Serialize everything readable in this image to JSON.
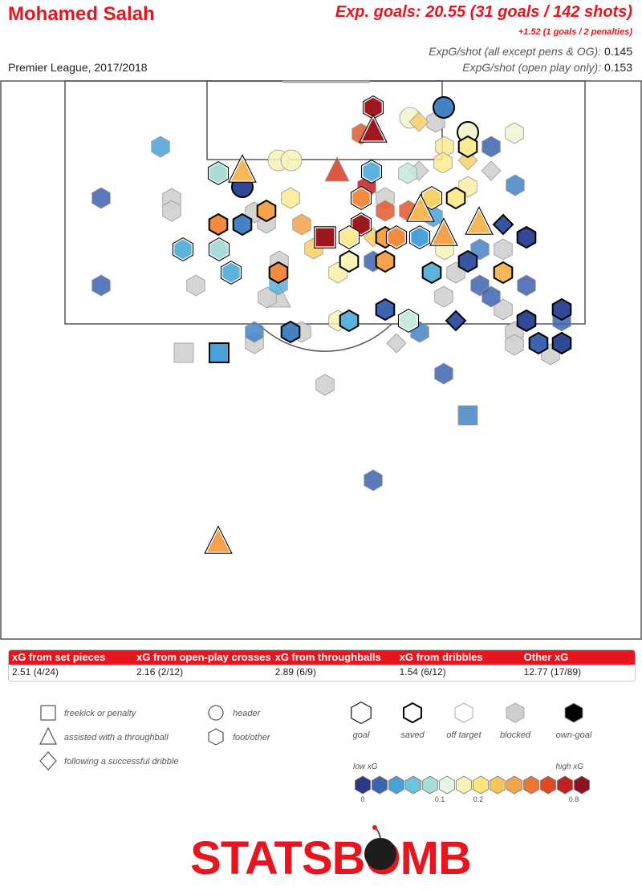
{
  "header": {
    "player_name": "Mohamed Salah",
    "competition": "Premier League, 2017/2018",
    "xg_total": "Exp. goals: 20.55 (31 goals / 142 shots)",
    "xg_penalties": "+1.52 (1 goals / 2 penalties)",
    "xg_per_shot_all_label": "ExpG/shot (all except pens & OG):",
    "xg_per_shot_all_value": "0.145",
    "xg_per_shot_open_label": "ExpG/shot (open play only):",
    "xg_per_shot_open_value": "0.153"
  },
  "breakdown": {
    "headers": [
      "xG from set pieces",
      "xG from open-play crosses",
      "xG from throughballs",
      "xG from dribbles",
      "Other xG"
    ],
    "values": [
      "2.51 (4/24)",
      "2.16 (2/12)",
      "2.89 (6/9)",
      "1.54 (6/12)",
      "12.77 (17/89)"
    ]
  },
  "legend": {
    "shapes": [
      {
        "shape": "square",
        "label": "freekick or penalty"
      },
      {
        "shape": "triangle",
        "label": "assisted with a throughball"
      },
      {
        "shape": "diamond",
        "label": "following a successful dribble"
      },
      {
        "shape": "circle",
        "label": "header"
      },
      {
        "shape": "hexagon",
        "label": "foot/other"
      }
    ],
    "outcomes": [
      {
        "outcome": "goal",
        "label": "goal"
      },
      {
        "outcome": "saved",
        "label": "saved"
      },
      {
        "outcome": "off",
        "label": "off target"
      },
      {
        "outcome": "blocked",
        "label": "blocked"
      },
      {
        "outcome": "own",
        "label": "own-goal"
      }
    ],
    "scale_low_label": "low xG",
    "scale_high_label": "high xG",
    "scale_colors": [
      "#2b3a87",
      "#3e63b0",
      "#4aa0d8",
      "#6fc3dc",
      "#a8dcd9",
      "#e6f4e4",
      "#f8f3b8",
      "#fbe67d",
      "#f7c55e",
      "#f4a24b",
      "#ec7434",
      "#df4a24",
      "#c0211e",
      "#8e1220"
    ],
    "scale_ticks": [
      "0",
      "0.1",
      "0.2",
      "0.8"
    ]
  },
  "logo_text": "STATSBOMB",
  "colors": {
    "brand_red": "#e8141e",
    "blocked_grey": "#d0d0d0"
  },
  "chart_data": {
    "type": "scatter",
    "description_of_encoding": "shot locations on the attacking half of the pitch; shape = shot type, color = xG, outline = outcome",
    "series": [
      {
        "shape": "hexagon",
        "outcome": "goal",
        "xg": 0.8,
        "x": 465,
        "y": 134
      },
      {
        "shape": "triangle",
        "outcome": "goal",
        "xg": 0.8,
        "x": 465,
        "y": 163
      },
      {
        "shape": "hexagon",
        "outcome": "off",
        "xg": 0.5,
        "x": 450,
        "y": 167
      },
      {
        "shape": "circle",
        "outcome": "saved",
        "xg": 0.04,
        "x": 553,
        "y": 134
      },
      {
        "shape": "circle",
        "outcome": "off",
        "xg": 0.12,
        "x": 511,
        "y": 147
      },
      {
        "shape": "diamond",
        "outcome": "off",
        "xg": 0.2,
        "x": 522,
        "y": 152
      },
      {
        "shape": "hexagon",
        "outcome": "blocked",
        "xg": 0.1,
        "x": 543,
        "y": 152
      },
      {
        "shape": "circle",
        "outcome": "saved",
        "xg": 0.12,
        "x": 583,
        "y": 165
      },
      {
        "shape": "hexagon",
        "outcome": "off",
        "xg": 0.12,
        "x": 641,
        "y": 166
      },
      {
        "shape": "hexagon",
        "outcome": "off",
        "xg": 0.05,
        "x": 200,
        "y": 183
      },
      {
        "shape": "hexagon",
        "outcome": "off",
        "xg": 0.15,
        "x": 554,
        "y": 183
      },
      {
        "shape": "hexagon",
        "outcome": "saved",
        "xg": 0.15,
        "x": 583,
        "y": 183
      },
      {
        "shape": "hexagon",
        "outcome": "off",
        "xg": 0.03,
        "x": 612,
        "y": 183
      },
      {
        "shape": "circle",
        "outcome": "off",
        "xg": 0.13,
        "x": 347,
        "y": 200
      },
      {
        "shape": "circle",
        "outcome": "off",
        "xg": 0.13,
        "x": 363,
        "y": 200
      },
      {
        "shape": "diamond",
        "outcome": "off",
        "xg": 0.2,
        "x": 583,
        "y": 200
      },
      {
        "shape": "hexagon",
        "outcome": "off",
        "xg": 0.15,
        "x": 552,
        "y": 203
      },
      {
        "shape": "triangle",
        "outcome": "goal",
        "xg": 0.25,
        "x": 302,
        "y": 213
      },
      {
        "shape": "hexagon",
        "outcome": "goal",
        "xg": 0.09,
        "x": 272,
        "y": 216
      },
      {
        "shape": "triangle",
        "outcome": "off",
        "xg": 0.6,
        "x": 420,
        "y": 213
      },
      {
        "shape": "hexagon",
        "outcome": "goal",
        "xg": 0.06,
        "x": 463,
        "y": 214
      },
      {
        "shape": "hexagon",
        "outcome": "off",
        "xg": 0.1,
        "x": 508,
        "y": 216
      },
      {
        "shape": "diamond",
        "outcome": "blocked",
        "xg": 0.05,
        "x": 522,
        "y": 213
      },
      {
        "shape": "diamond",
        "outcome": "blocked",
        "xg": 0.05,
        "x": 612,
        "y": 213
      },
      {
        "shape": "hexagon",
        "outcome": "off",
        "xg": 0.04,
        "x": 642,
        "y": 231
      },
      {
        "shape": "circle",
        "outcome": "saved",
        "xg": 0.01,
        "x": 302,
        "y": 233
      },
      {
        "shape": "hexagon",
        "outcome": "off",
        "xg": 0.03,
        "x": 126,
        "y": 247
      },
      {
        "shape": "hexagon",
        "outcome": "blocked",
        "xg": 0.05,
        "x": 214,
        "y": 248
      },
      {
        "shape": "hexagon",
        "outcome": "blocked",
        "xg": 0.05,
        "x": 214,
        "y": 263
      },
      {
        "shape": "hexagon",
        "outcome": "off",
        "xg": 0.15,
        "x": 362,
        "y": 247
      },
      {
        "shape": "hexagon",
        "outcome": "goal",
        "xg": 0.35,
        "x": 450,
        "y": 247
      },
      {
        "shape": "hexagon",
        "outcome": "off",
        "xg": 0.7,
        "x": 457,
        "y": 233
      },
      {
        "shape": "hexagon",
        "outcome": "blocked",
        "xg": 0.05,
        "x": 480,
        "y": 247
      },
      {
        "shape": "hexagon",
        "outcome": "goal",
        "xg": 0.2,
        "x": 538,
        "y": 247
      },
      {
        "shape": "hexagon",
        "outcome": "saved",
        "xg": 0.15,
        "x": 568,
        "y": 247
      },
      {
        "shape": "hexagon",
        "outcome": "off",
        "xg": 0.14,
        "x": 583,
        "y": 233
      },
      {
        "shape": "hexagon",
        "outcome": "saved",
        "xg": 0.3,
        "x": 332,
        "y": 263
      },
      {
        "shape": "hexagon",
        "outcome": "blocked",
        "xg": 0.12,
        "x": 332,
        "y": 278
      },
      {
        "shape": "hexagon",
        "outcome": "off",
        "xg": 0.5,
        "x": 480,
        "y": 263
      },
      {
        "shape": "hexagon",
        "outcome": "off",
        "xg": 0.5,
        "x": 509,
        "y": 263
      },
      {
        "shape": "triangle",
        "outcome": "goal",
        "xg": 0.25,
        "x": 524,
        "y": 262
      },
      {
        "shape": "hexagon",
        "outcome": "off",
        "xg": 0.05,
        "x": 540,
        "y": 270
      },
      {
        "shape": "triangle",
        "outcome": "goal",
        "xg": 0.25,
        "x": 597,
        "y": 278
      },
      {
        "shape": "diamond",
        "outcome": "saved",
        "xg": 0.02,
        "x": 627,
        "y": 280
      },
      {
        "shape": "hexagon",
        "outcome": "saved",
        "xg": 0.35,
        "x": 272,
        "y": 280
      },
      {
        "shape": "hexagon",
        "outcome": "saved",
        "xg": 0.04,
        "x": 302,
        "y": 280
      },
      {
        "shape": "hexagon",
        "outcome": "blocked",
        "xg": 0.05,
        "x": 317,
        "y": 265
      },
      {
        "shape": "hexagon",
        "outcome": "off",
        "xg": 0.3,
        "x": 376,
        "y": 280
      },
      {
        "shape": "hexagon",
        "outcome": "goal",
        "xg": 0.8,
        "x": 450,
        "y": 280
      },
      {
        "shape": "hexagon",
        "outcome": "saved",
        "xg": 0.3,
        "x": 480,
        "y": 296
      },
      {
        "shape": "hexagon",
        "outcome": "goal",
        "xg": 0.35,
        "x": 494,
        "y": 296
      },
      {
        "shape": "hexagon",
        "outcome": "goal",
        "xg": 0.05,
        "x": 523,
        "y": 296
      },
      {
        "shape": "triangle",
        "outcome": "goal",
        "xg": 0.3,
        "x": 553,
        "y": 292
      },
      {
        "shape": "hexagon",
        "outcome": "saved",
        "xg": 0.01,
        "x": 656,
        "y": 296
      },
      {
        "shape": "square",
        "outcome": "goal",
        "xg": 0.8,
        "x": 405,
        "y": 296
      },
      {
        "shape": "hexagon",
        "outcome": "off",
        "xg": 0.2,
        "x": 391,
        "y": 310
      },
      {
        "shape": "hexagon",
        "outcome": "goal",
        "xg": 0.15,
        "x": 435,
        "y": 296
      },
      {
        "shape": "diamond",
        "outcome": "off",
        "xg": 0.2,
        "x": 465,
        "y": 296
      },
      {
        "shape": "hexagon",
        "outcome": "goal",
        "xg": 0.06,
        "x": 228,
        "y": 311
      },
      {
        "shape": "hexagon",
        "outcome": "goal",
        "xg": 0.09,
        "x": 273,
        "y": 311
      },
      {
        "shape": "hexagon",
        "outcome": "blocked",
        "xg": 0.05,
        "x": 348,
        "y": 326
      },
      {
        "shape": "hexagon",
        "outcome": "off",
        "xg": 0.14,
        "x": 421,
        "y": 340
      },
      {
        "shape": "hexagon",
        "outcome": "saved",
        "xg": 0.13,
        "x": 435,
        "y": 326
      },
      {
        "shape": "hexagon",
        "outcome": "off",
        "xg": 0.03,
        "x": 465,
        "y": 326
      },
      {
        "shape": "hexagon",
        "outcome": "saved",
        "xg": 0.3,
        "x": 480,
        "y": 326
      },
      {
        "shape": "hexagon",
        "outcome": "off",
        "xg": 0.13,
        "x": 554,
        "y": 311
      },
      {
        "shape": "hexagon",
        "outcome": "saved",
        "xg": 0.02,
        "x": 583,
        "y": 326
      },
      {
        "shape": "hexagon",
        "outcome": "off",
        "xg": 0.04,
        "x": 598,
        "y": 311
      },
      {
        "shape": "hexagon",
        "outcome": "blocked",
        "xg": 0.05,
        "x": 627,
        "y": 311
      },
      {
        "shape": "hexagon",
        "outcome": "goal",
        "xg": 0.06,
        "x": 288,
        "y": 340
      },
      {
        "shape": "hexagon",
        "outcome": "saved",
        "xg": 0.35,
        "x": 347,
        "y": 340
      },
      {
        "shape": "hexagon",
        "outcome": "off",
        "xg": 0.06,
        "x": 347,
        "y": 355
      },
      {
        "shape": "triangle",
        "outcome": "blocked",
        "xg": 0.05,
        "x": 347,
        "y": 370
      },
      {
        "shape": "hexagon",
        "outcome": "saved",
        "xg": 0.06,
        "x": 538,
        "y": 340
      },
      {
        "shape": "hexagon",
        "outcome": "blocked",
        "xg": 0.05,
        "x": 568,
        "y": 340
      },
      {
        "shape": "hexagon",
        "outcome": "saved",
        "xg": 0.25,
        "x": 627,
        "y": 340
      },
      {
        "shape": "hexagon",
        "outcome": "off",
        "xg": 0.03,
        "x": 126,
        "y": 356
      },
      {
        "shape": "hexagon",
        "outcome": "blocked",
        "xg": 0.05,
        "x": 244,
        "y": 356
      },
      {
        "shape": "hexagon",
        "outcome": "blocked",
        "xg": 0.05,
        "x": 333,
        "y": 371
      },
      {
        "shape": "hexagon",
        "outcome": "blocked",
        "xg": 0.05,
        "x": 553,
        "y": 370
      },
      {
        "shape": "hexagon",
        "outcome": "off",
        "xg": 0.03,
        "x": 598,
        "y": 356
      },
      {
        "shape": "hexagon",
        "outcome": "off",
        "xg": 0.03,
        "x": 612,
        "y": 370
      },
      {
        "shape": "hexagon",
        "outcome": "off",
        "xg": 0.03,
        "x": 656,
        "y": 356
      },
      {
        "shape": "hexagon",
        "outcome": "saved",
        "xg": 0.03,
        "x": 480,
        "y": 386
      },
      {
        "shape": "hexagon",
        "outcome": "off",
        "xg": 0.13,
        "x": 421,
        "y": 400
      },
      {
        "shape": "hexagon",
        "outcome": "saved",
        "xg": 0.06,
        "x": 435,
        "y": 400
      },
      {
        "shape": "hexagon",
        "outcome": "goal",
        "xg": 0.1,
        "x": 509,
        "y": 400
      },
      {
        "shape": "diamond",
        "outcome": "saved",
        "xg": 0.02,
        "x": 568,
        "y": 400
      },
      {
        "shape": "hexagon",
        "outcome": "blocked",
        "xg": 0.05,
        "x": 627,
        "y": 386
      },
      {
        "shape": "hexagon",
        "outcome": "saved",
        "xg": 0.01,
        "x": 656,
        "y": 400
      },
      {
        "shape": "hexagon",
        "outcome": "saved",
        "xg": 0.01,
        "x": 700,
        "y": 386
      },
      {
        "shape": "hexagon",
        "outcome": "off",
        "xg": 0.03,
        "x": 700,
        "y": 400
      },
      {
        "shape": "hexagon",
        "outcome": "off",
        "xg": 0.04,
        "x": 317,
        "y": 414
      },
      {
        "shape": "hexagon",
        "outcome": "blocked",
        "xg": 0.05,
        "x": 317,
        "y": 428
      },
      {
        "shape": "hexagon",
        "outcome": "saved",
        "xg": 0.04,
        "x": 362,
        "y": 414
      },
      {
        "shape": "hexagon",
        "outcome": "blocked",
        "xg": 0.05,
        "x": 376,
        "y": 414
      },
      {
        "shape": "hexagon",
        "outcome": "off",
        "xg": 0.04,
        "x": 523,
        "y": 414
      },
      {
        "shape": "diamond",
        "outcome": "blocked",
        "xg": 0.05,
        "x": 494,
        "y": 428
      },
      {
        "shape": "hexagon",
        "outcome": "blocked",
        "xg": 0.05,
        "x": 641,
        "y": 414
      },
      {
        "shape": "hexagon",
        "outcome": "blocked",
        "xg": 0.05,
        "x": 641,
        "y": 430
      },
      {
        "shape": "hexagon",
        "outcome": "saved",
        "xg": 0.03,
        "x": 671,
        "y": 428
      },
      {
        "shape": "hexagon",
        "outcome": "saved",
        "xg": 0.01,
        "x": 700,
        "y": 428
      },
      {
        "shape": "hexagon",
        "outcome": "blocked",
        "xg": 0.05,
        "x": 686,
        "y": 442
      },
      {
        "shape": "square",
        "outcome": "blocked",
        "xg": 0.05,
        "x": 229,
        "y": 440
      },
      {
        "shape": "square",
        "outcome": "saved",
        "xg": 0.05,
        "x": 273,
        "y": 440
      },
      {
        "shape": "hexagon",
        "outcome": "off",
        "xg": 0.03,
        "x": 553,
        "y": 466
      },
      {
        "shape": "hexagon",
        "outcome": "blocked",
        "xg": 0.05,
        "x": 405,
        "y": 480
      },
      {
        "shape": "square",
        "outcome": "off",
        "xg": 0.04,
        "x": 583,
        "y": 518
      },
      {
        "shape": "hexagon",
        "outcome": "off",
        "xg": 0.03,
        "x": 465,
        "y": 599
      },
      {
        "shape": "triangle",
        "outcome": "goal",
        "xg": 0.3,
        "x": 272,
        "y": 676
      }
    ]
  }
}
